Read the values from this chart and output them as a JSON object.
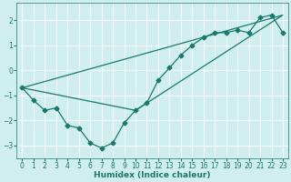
{
  "line1_x": [
    0,
    1,
    2,
    3,
    4,
    5,
    6,
    7,
    8,
    9,
    10,
    11,
    12,
    13,
    14,
    15,
    16,
    17,
    18,
    19,
    20,
    21,
    22,
    23
  ],
  "line1_y": [
    -0.7,
    -1.2,
    -1.6,
    -1.5,
    -2.2,
    -2.3,
    -2.9,
    -3.1,
    -2.9,
    -2.1,
    -1.6,
    -1.3,
    -0.4,
    0.1,
    0.6,
    1.0,
    1.3,
    1.5,
    1.5,
    1.6,
    1.5,
    2.1,
    2.2,
    1.5
  ],
  "line2_x": [
    0,
    23,
    10,
    0
  ],
  "line2_y": [
    -0.7,
    2.2,
    -1.6,
    -0.7
  ],
  "line_color": "#1a7a6a",
  "bg_color": "#d0eeee",
  "grid_color": "#b0cccc",
  "xlabel": "Humidex (Indice chaleur)",
  "xlim": [
    -0.5,
    23.5
  ],
  "ylim": [
    -3.5,
    2.7
  ],
  "yticks": [
    -3,
    -2,
    -1,
    0,
    1,
    2
  ],
  "xticks": [
    0,
    1,
    2,
    3,
    4,
    5,
    6,
    7,
    8,
    9,
    10,
    11,
    12,
    13,
    14,
    15,
    16,
    17,
    18,
    19,
    20,
    21,
    22,
    23
  ]
}
